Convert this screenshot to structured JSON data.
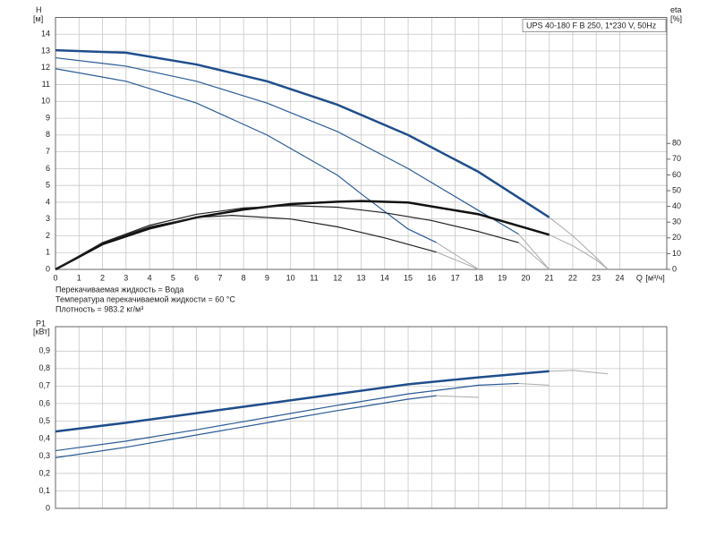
{
  "chart_data": [
    {
      "type": "line",
      "title": "UPS 40-180 F B 250, 1*230 V, 50Hz",
      "ylabel": "H",
      "yunit": "[м]",
      "y2label": "eta",
      "y2unit": "[%]",
      "xlabel": "Q",
      "xunit": "[м³/ч]",
      "xlim": [
        0,
        26
      ],
      "xticks": [
        0,
        1,
        2,
        3,
        4,
        5,
        6,
        7,
        8,
        9,
        10,
        11,
        12,
        13,
        14,
        15,
        16,
        17,
        18,
        19,
        20,
        21,
        22,
        23,
        24
      ],
      "xtick_labels": true,
      "ylim": [
        0,
        15
      ],
      "yticks": [
        0,
        1,
        2,
        3,
        4,
        5,
        6,
        7,
        8,
        9,
        10,
        11,
        12,
        13,
        14
      ],
      "y2lim": [
        0,
        160
      ],
      "y2ticks": [
        0,
        10,
        20,
        30,
        40,
        50,
        60,
        70,
        80
      ],
      "grid": true,
      "notes": [
        "Перекачиваемая жидкость = Вода",
        "Температура перекачиваемой жидкости = 60 °C",
        "Плотность = 983.2 кг/м³"
      ],
      "series": [
        {
          "color": "#1f4e8c",
          "line_width": 2.5,
          "x": [
            0,
            3,
            6,
            9,
            12,
            15,
            18,
            21
          ],
          "values": [
            13.05,
            12.9,
            12.2,
            11.2,
            9.8,
            8.0,
            5.8,
            3.1
          ]
        },
        {
          "color": "#aaaaaa",
          "line_width": 1,
          "x": [
            21,
            22,
            23,
            23.5
          ],
          "values": [
            3.1,
            2.0,
            0.7,
            0
          ]
        },
        {
          "color": "#2a5b96",
          "line_width": 1.2,
          "x": [
            0,
            3,
            6,
            9,
            12,
            15,
            18,
            19.7
          ],
          "values": [
            12.6,
            12.1,
            11.2,
            9.9,
            8.2,
            6.0,
            3.5,
            2.1
          ]
        },
        {
          "color": "#aaaaaa",
          "line_width": 1,
          "x": [
            19.7,
            21
          ],
          "values": [
            2.1,
            0
          ]
        },
        {
          "color": "#2a5b96",
          "line_width": 1.2,
          "x": [
            0,
            3,
            6,
            9,
            12,
            13,
            15,
            16.2
          ],
          "values": [
            11.95,
            11.2,
            9.9,
            8.0,
            5.6,
            4.5,
            2.4,
            1.6
          ]
        },
        {
          "color": "#aaaaaa",
          "line_width": 1,
          "x": [
            16.2,
            18
          ],
          "values": [
            1.6,
            0
          ]
        },
        {
          "color": "#111111",
          "line_width": 2.5,
          "axis": "y2",
          "x": [
            0,
            2,
            4,
            6,
            8,
            10,
            12,
            13,
            15,
            18,
            21
          ],
          "values": [
            0,
            16,
            26,
            33,
            38,
            41.5,
            43,
            43.4,
            42.5,
            35,
            22
          ]
        },
        {
          "color": "#aaaaaa",
          "line_width": 1,
          "axis": "y2",
          "x": [
            21,
            22,
            23,
            23.5
          ],
          "values": [
            22,
            15,
            6,
            0
          ]
        },
        {
          "color": "#222222",
          "line_width": 1.2,
          "axis": "y2",
          "x": [
            0,
            2,
            4,
            6,
            8,
            10,
            12,
            14,
            16,
            18,
            19.7
          ],
          "values": [
            0,
            17,
            28,
            35,
            39,
            40.5,
            39.5,
            36,
            31,
            24,
            17
          ]
        },
        {
          "color": "#aaaaaa",
          "line_width": 1,
          "axis": "y2",
          "x": [
            19.7,
            21
          ],
          "values": [
            17,
            0
          ]
        },
        {
          "color": "#222222",
          "line_width": 1.2,
          "axis": "y2",
          "x": [
            0,
            2,
            4,
            6,
            7.5,
            10,
            12,
            14,
            16.2
          ],
          "values": [
            0,
            17,
            27,
            33,
            34.3,
            32,
            27,
            20,
            11
          ]
        },
        {
          "color": "#aaaaaa",
          "line_width": 1,
          "axis": "y2",
          "x": [
            16.2,
            18
          ],
          "values": [
            11,
            0
          ]
        }
      ]
    },
    {
      "type": "line",
      "ylabel": "P1",
      "yunit": "[кВт]",
      "xlim": [
        0,
        26
      ],
      "xticks": [
        0,
        1,
        2,
        3,
        4,
        5,
        6,
        7,
        8,
        9,
        10,
        11,
        12,
        13,
        14,
        15,
        16,
        17,
        18,
        19,
        20,
        21,
        22,
        23,
        24,
        25
      ],
      "xtick_labels": false,
      "ylim": [
        0,
        1.04
      ],
      "yticks": [
        0,
        {
          "value": 0.1,
          "label": "0,1"
        },
        {
          "value": 0.2,
          "label": "0,2"
        },
        {
          "value": 0.3,
          "label": "0,3"
        },
        {
          "value": 0.4,
          "label": "0,4"
        },
        {
          "value": 0.5,
          "label": "0,5"
        },
        {
          "value": 0.6,
          "label": "0,6"
        },
        {
          "value": 0.7,
          "label": "0,7"
        },
        {
          "value": 0.8,
          "label": "0,8"
        },
        {
          "value": 0.9,
          "label": "0,9"
        }
      ],
      "grid": true,
      "series": [
        {
          "color": "#1f4e8c",
          "line_width": 2.5,
          "x": [
            0,
            3,
            6,
            9,
            12,
            15,
            18,
            21
          ],
          "values": [
            0.44,
            0.49,
            0.545,
            0.6,
            0.655,
            0.71,
            0.75,
            0.785
          ]
        },
        {
          "color": "#aaaaaa",
          "line_width": 1,
          "x": [
            21,
            22,
            23.5
          ],
          "values": [
            0.785,
            0.79,
            0.77
          ]
        },
        {
          "color": "#2a5b96",
          "line_width": 1.2,
          "x": [
            0,
            3,
            6,
            9,
            12,
            15,
            18,
            19.7
          ],
          "values": [
            0.33,
            0.385,
            0.45,
            0.52,
            0.59,
            0.655,
            0.705,
            0.715
          ]
        },
        {
          "color": "#aaaaaa",
          "line_width": 1,
          "x": [
            19.7,
            21
          ],
          "values": [
            0.715,
            0.705
          ]
        },
        {
          "color": "#2a5b96",
          "line_width": 1.2,
          "x": [
            0,
            3,
            6,
            9,
            12,
            15,
            16.2
          ],
          "values": [
            0.29,
            0.35,
            0.42,
            0.49,
            0.56,
            0.625,
            0.645
          ]
        },
        {
          "color": "#aaaaaa",
          "line_width": 1,
          "x": [
            16.2,
            18
          ],
          "values": [
            0.645,
            0.635
          ]
        }
      ]
    }
  ]
}
